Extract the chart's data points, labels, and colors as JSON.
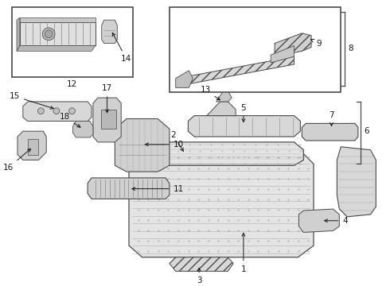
{
  "bg_color": "#ffffff",
  "line_color": "#4a4a4a",
  "figsize": [
    4.9,
    3.6
  ],
  "dpi": 100
}
